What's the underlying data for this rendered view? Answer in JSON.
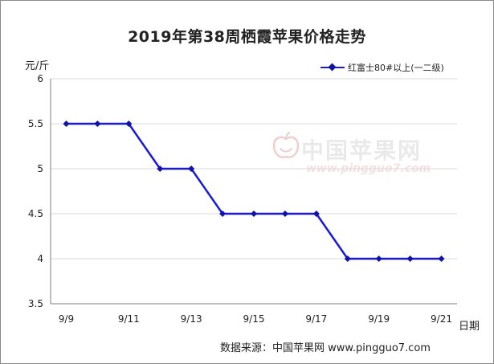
{
  "chart_data": {
    "type": "line",
    "title": "2019年第38周栖霞苹果价格走势",
    "ylabel": "元/斤",
    "xlabel": "日期",
    "categories": [
      "9/9",
      "9/10",
      "9/11",
      "9/12",
      "9/13",
      "9/14",
      "9/15",
      "9/16",
      "9/17",
      "9/18",
      "9/19",
      "9/20",
      "9/21"
    ],
    "x_tick_labels": [
      "9/9",
      "9/11",
      "9/13",
      "9/15",
      "9/17",
      "9/19",
      "9/21"
    ],
    "y_ticks": [
      "3.5",
      "4",
      "4.5",
      "5",
      "5.5",
      "6"
    ],
    "ylim": [
      3.5,
      6
    ],
    "grid": true,
    "legend_position": "top-right",
    "series": [
      {
        "name": "红富士80#以上(一二级)",
        "color": "#1a1adb",
        "values": [
          5.5,
          5.5,
          5.5,
          5,
          5,
          4.5,
          4.5,
          4.5,
          4.5,
          4,
          4,
          4,
          4
        ]
      }
    ]
  },
  "source_text": "数据来源：中国苹果网 www.pingguo7.com",
  "watermark": {
    "name": "中国苹果网",
    "url": "www.pingguo7.com"
  },
  "colors": {
    "line": "#1a1adb",
    "marker": "#0f14a8",
    "grid": "#d9d9d9",
    "axis": "#7f7f7f"
  }
}
